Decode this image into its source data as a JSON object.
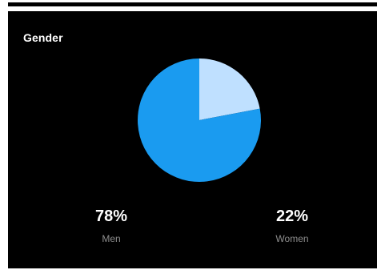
{
  "card": {
    "title": "Gender"
  },
  "chart_data": {
    "type": "pie",
    "title": "Gender",
    "slices": [
      {
        "label": "Men",
        "value": 78,
        "display": "78%",
        "color": "#1a9bf0"
      },
      {
        "label": "Women",
        "value": 22,
        "display": "22%",
        "color": "#bfe0ff"
      }
    ]
  },
  "colors": {
    "background": "#000000",
    "men": "#1a9bf0",
    "women": "#bfe0ff",
    "label": "#8e8e8e"
  }
}
